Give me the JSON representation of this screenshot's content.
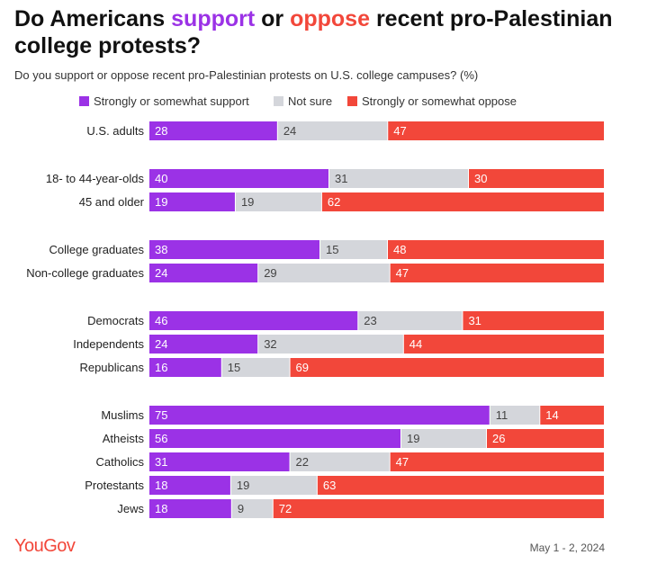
{
  "header": {
    "title_prefix": "Do Americans ",
    "title_support": "support",
    "title_mid": " or ",
    "title_oppose": "oppose",
    "title_suffix": " recent pro-Palestinian college protests?",
    "subtitle": "Do you support or oppose recent pro-Palestinian protests on U.S. college campuses? (%)"
  },
  "footer": {
    "logo": "YouGov",
    "date": "May 1 - 2, 2024"
  },
  "colors": {
    "support": "#9b32e6",
    "not_sure": "#d4d6db",
    "oppose": "#f2473a",
    "title_support": "#9b32e6",
    "title_oppose": "#f2473a"
  },
  "chart_data": {
    "type": "bar",
    "orientation": "horizontal",
    "stacked": true,
    "legend_position": "top",
    "legend": [
      "Strongly or somewhat support",
      "Not sure",
      "Strongly or somewhat oppose"
    ],
    "categories": [
      "U.S. adults",
      "18- to 44-year-olds",
      "45 and older",
      "College graduates",
      "Non-college graduates",
      "Democrats",
      "Independents",
      "Republicans",
      "Muslims",
      "Atheists",
      "Catholics",
      "Protestants",
      "Jews"
    ],
    "groups": [
      [
        0
      ],
      [
        1,
        2
      ],
      [
        3,
        4
      ],
      [
        5,
        6,
        7
      ],
      [
        8,
        9,
        10,
        11,
        12
      ]
    ],
    "series": [
      {
        "name": "Strongly or somewhat support",
        "values": [
          28,
          40,
          19,
          38,
          24,
          46,
          24,
          16,
          75,
          56,
          31,
          18,
          18
        ]
      },
      {
        "name": "Not sure",
        "values": [
          24,
          31,
          19,
          15,
          29,
          23,
          32,
          15,
          11,
          19,
          22,
          19,
          9
        ]
      },
      {
        "name": "Strongly or somewhat oppose",
        "values": [
          47,
          30,
          62,
          48,
          47,
          31,
          44,
          69,
          14,
          26,
          47,
          63,
          72
        ]
      }
    ]
  }
}
